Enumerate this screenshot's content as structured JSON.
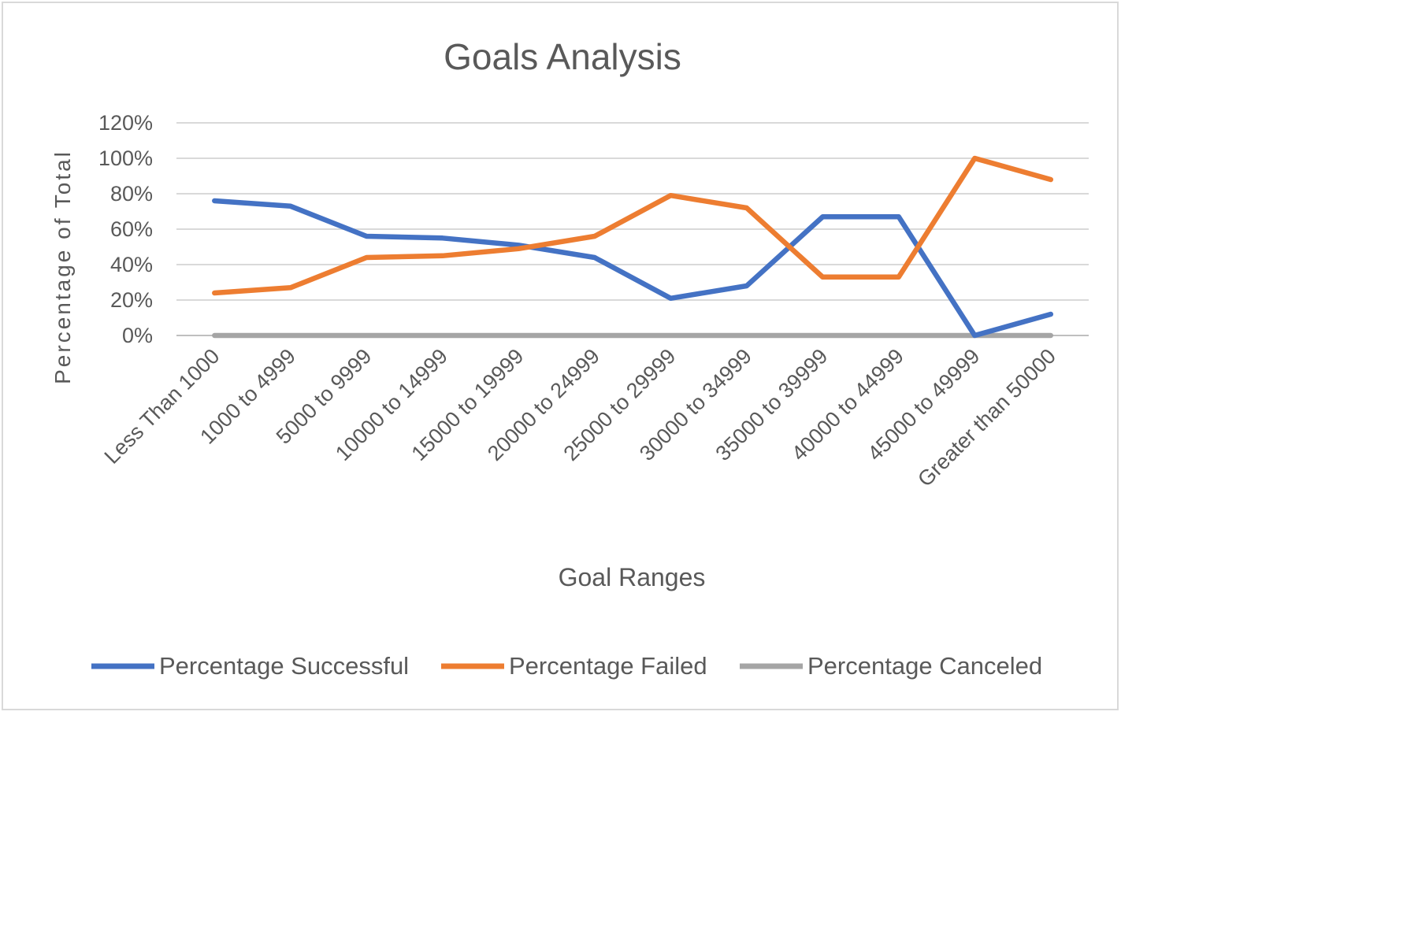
{
  "chart_data": {
    "type": "line",
    "title": "Goals Analysis",
    "xlabel": "Goal Ranges",
    "ylabel": "Percentage of Total",
    "ylim": [
      0,
      1.2
    ],
    "y_ticks": [
      "0%",
      "20%",
      "40%",
      "60%",
      "80%",
      "100%",
      "120%"
    ],
    "grid": true,
    "legend_position": "bottom",
    "categories": [
      "Less Than 1000",
      "1000 to 4999",
      "5000 to 9999",
      "10000 to 14999",
      "15000 to 19999",
      "20000 to 24999",
      "25000 to 29999",
      "30000 to 34999",
      "35000 to 39999",
      "40000 to 44999",
      "45000 to 49999",
      "Greater than 50000"
    ],
    "series": [
      {
        "name": "Percentage Successful",
        "color": "#4472c4",
        "values": [
          0.76,
          0.73,
          0.56,
          0.55,
          0.51,
          0.44,
          0.21,
          0.28,
          0.67,
          0.67,
          0.0,
          0.12
        ]
      },
      {
        "name": "Percentage Failed",
        "color": "#ed7d31",
        "values": [
          0.24,
          0.27,
          0.44,
          0.45,
          0.49,
          0.56,
          0.79,
          0.72,
          0.33,
          0.33,
          1.0,
          0.88
        ]
      },
      {
        "name": "Percentage Canceled",
        "color": "#a5a5a5",
        "values": [
          0,
          0,
          0,
          0,
          0,
          0,
          0,
          0,
          0,
          0,
          0,
          0
        ]
      }
    ]
  }
}
